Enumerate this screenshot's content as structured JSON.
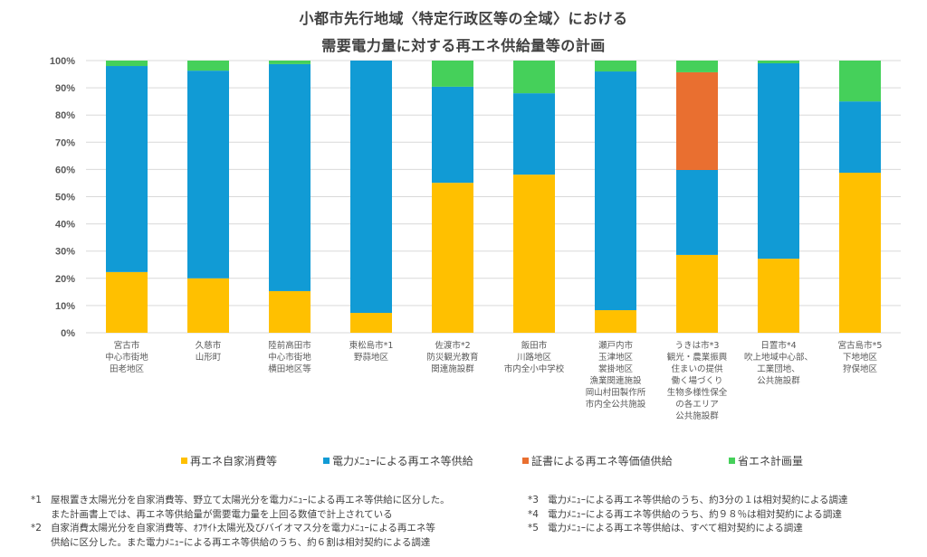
{
  "chart_data": {
    "type": "bar",
    "stacked": true,
    "title": "小都市先行地域〈特定行政区等の全域〉における",
    "subtitle": "需要電力量に対する再エネ供給量等の計画",
    "xlabel": "",
    "ylabel": "",
    "ylim": [
      0,
      100
    ],
    "yticks": [
      "0%",
      "10%",
      "20%",
      "30%",
      "40%",
      "50%",
      "60%",
      "70%",
      "80%",
      "90%",
      "100%"
    ],
    "grid": true,
    "legend_position": "bottom",
    "categories": [
      [
        "宮古市",
        "中心市街地",
        "田老地区"
      ],
      [
        "久慈市",
        "山形町"
      ],
      [
        "陸前高田市",
        "中心市街地",
        "横田地区等"
      ],
      [
        "東松島市*1",
        "野蒜地区"
      ],
      [
        "佐渡市*2",
        "防災観光教育",
        "関連施設群"
      ],
      [
        "飯田市",
        "川路地区",
        "市内全小中学校"
      ],
      [
        "瀬戸内市",
        "玉津地区",
        "裳掛地区",
        "漁業関連施設",
        "岡山村田製作所",
        "市内全公共施設"
      ],
      [
        "うきは市*3",
        "観光・農業振興",
        "住まいの提供",
        "働く場づくり",
        "生物多様性保全",
        "の各エリア",
        "公共施設群"
      ],
      [
        "日置市*4",
        "吹上地域中心部、",
        "工業団地、",
        "公共施設群"
      ],
      [
        "宮古島市*5",
        "下地地区",
        "狩俣地区"
      ]
    ],
    "series": [
      {
        "name": "再エネ自家消費等",
        "color": "#FFC000",
        "values": [
          22.3,
          20.0,
          15.3,
          7.3,
          55.1,
          58.1,
          8.3,
          28.6,
          27.2,
          58.8
        ]
      },
      {
        "name": "電力ﾒﾆｭｰによる再エネ等供給",
        "color": "#119BD5",
        "values": [
          75.7,
          76.3,
          83.4,
          92.7,
          35.3,
          29.9,
          87.7,
          31.2,
          71.8,
          26.2
        ]
      },
      {
        "name": "証書による再エネ等価値供給",
        "color": "#E96F30",
        "values": [
          0,
          0,
          0,
          0,
          0,
          0,
          0,
          35.9,
          0,
          0
        ]
      },
      {
        "name": "省エネ計画量",
        "color": "#45D05A",
        "values": [
          2.0,
          3.7,
          1.3,
          0,
          9.6,
          12.0,
          4.0,
          4.3,
          1.0,
          15.0
        ]
      }
    ]
  },
  "footnotes": {
    "left": [
      {
        "mark": "*1",
        "lines": [
          "屋根置き太陽光分を自家消費等、野立て太陽光分を電力ﾒﾆｭｰによる再エネ等供給に区分した。",
          "また計画書上では、再エネ等供給量が需要電力量を上回る数値で計上されている"
        ]
      },
      {
        "mark": "*2",
        "lines": [
          "自家消費太陽光分を自家消費等、ｵﾌｻｲﾄ太陽光及びバイオマス分を電力ﾒﾆｭｰによる再エネ等",
          "供給に区分した。また電力ﾒﾆｭｰによる再エネ等供給のうち、約６割は相対契約による調達"
        ]
      }
    ],
    "right": [
      {
        "mark": "*3",
        "lines": [
          "電力ﾒﾆｭｰによる再エネ等供給のうち、約3分の１は相対契約による調達"
        ]
      },
      {
        "mark": "*4",
        "lines": [
          "電力ﾒﾆｭｰによる再エネ等供給のうち、約９８％は相対契約による調達"
        ]
      },
      {
        "mark": "*5",
        "lines": [
          "電力ﾒﾆｭｰによる再エネ等供給は、すべて相対契約による調達"
        ]
      }
    ]
  }
}
